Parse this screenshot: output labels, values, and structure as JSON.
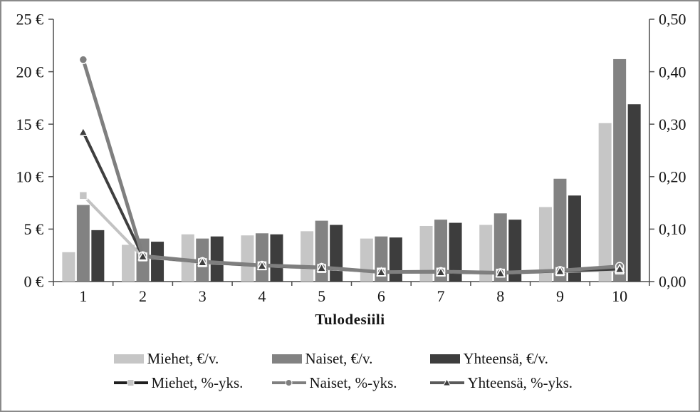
{
  "chart_data": {
    "type": "bar+line",
    "xlabel": "Tulodesiili",
    "categories": [
      "1",
      "2",
      "3",
      "4",
      "5",
      "6",
      "7",
      "8",
      "9",
      "10"
    ],
    "left_axis": {
      "tick_labels": [
        "0 €",
        "5 €",
        "10 €",
        "15 €",
        "20 €",
        "25 €"
      ],
      "tick_values": [
        0,
        5,
        10,
        15,
        20,
        25
      ],
      "min": 0,
      "max": 25
    },
    "right_axis": {
      "tick_labels": [
        "0,00",
        "0,10",
        "0,20",
        "0,30",
        "0,40",
        "0,50"
      ],
      "tick_values": [
        0.0,
        0.1,
        0.2,
        0.3,
        0.4,
        0.5
      ],
      "min": 0.0,
      "max": 0.5
    },
    "grid": false,
    "legend_position": "bottom",
    "bar_series": [
      {
        "name": "Miehet, €/v.",
        "color": "#c6c6c6",
        "axis": "left",
        "values": [
          2.8,
          3.5,
          4.5,
          4.4,
          4.8,
          4.1,
          5.3,
          5.4,
          7.1,
          15.1
        ]
      },
      {
        "name": "Naiset, €/v.",
        "color": "#828282",
        "axis": "left",
        "values": [
          7.3,
          4.1,
          4.1,
          4.6,
          5.8,
          4.3,
          5.9,
          6.5,
          9.8,
          21.2
        ]
      },
      {
        "name": "Yhteensä, €/v.",
        "color": "#3d3d3d",
        "axis": "left",
        "values": [
          4.9,
          3.8,
          4.3,
          4.5,
          5.4,
          4.2,
          5.6,
          5.9,
          8.2,
          16.9
        ]
      }
    ],
    "line_series": [
      {
        "name": "Miehet, %-yks.",
        "axis": "right",
        "marker": "square",
        "line_color": "#c2c2c2",
        "legend_line_color": "#1f1f1f",
        "marker_fill": "#c4c4c4",
        "values": [
          0.164,
          0.047,
          0.036,
          0.03,
          0.025,
          0.018,
          0.018,
          0.016,
          0.019,
          0.022
        ]
      },
      {
        "name": "Naiset, %-yks.",
        "axis": "right",
        "marker": "circle",
        "line_color": "#7f7f7f",
        "legend_line_color": "#7f7f7f",
        "marker_fill": "#7f7f7f",
        "values": [
          0.423,
          0.049,
          0.038,
          0.031,
          0.027,
          0.018,
          0.019,
          0.017,
          0.021,
          0.029
        ]
      },
      {
        "name": "Yhteensä, %-yks.",
        "axis": "right",
        "marker": "triangle",
        "line_color": "#3f3f3f",
        "legend_line_color": "#5a5a5a",
        "marker_fill": "#3f3f3f",
        "values": [
          0.285,
          0.048,
          0.037,
          0.03,
          0.026,
          0.018,
          0.018,
          0.016,
          0.02,
          0.024
        ]
      }
    ],
    "colors": {
      "axis": "#4d4d4d",
      "text": "#141414",
      "marker_stroke": "#ffffff",
      "background": "#ffffff",
      "frame_border": "#8a8a8a"
    }
  }
}
